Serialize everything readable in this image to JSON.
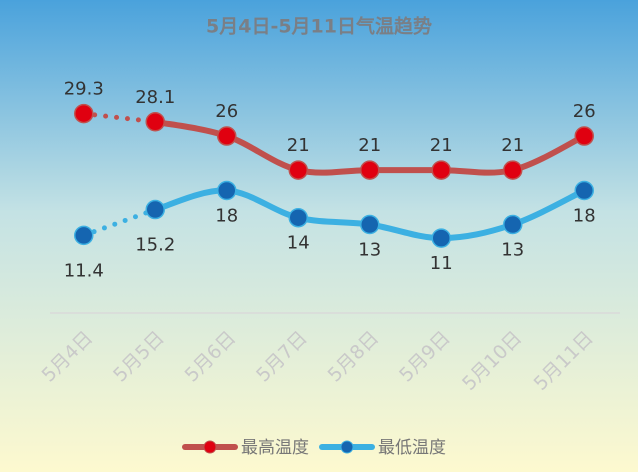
{
  "chart_data": {
    "type": "line",
    "title": "5月4日-5月11日气温趋势",
    "categories": [
      "5月4日",
      "5月5日",
      "5月6日",
      "5月7日",
      "5月8日",
      "5月9日",
      "5月10日",
      "5月11日"
    ],
    "series": [
      {
        "name": "最高温度",
        "color": "#c0504d",
        "marker_color": "#e00010",
        "values": [
          29.3,
          28.1,
          26,
          21,
          21,
          21,
          21,
          26
        ]
      },
      {
        "name": "最低温度",
        "color": "#3cb0e2",
        "marker_color": "#1565b0",
        "values": [
          11.4,
          15.2,
          18,
          14,
          13,
          11,
          13,
          18
        ]
      }
    ],
    "ylim": [
      0,
      36
    ],
    "legend": "bottom"
  }
}
